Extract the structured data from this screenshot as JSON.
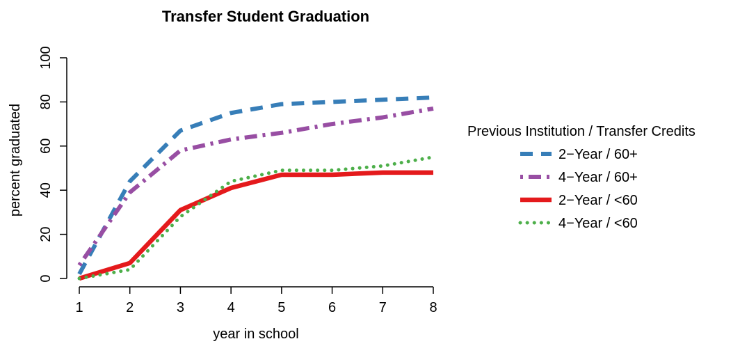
{
  "chart_data": {
    "type": "line",
    "title": "Transfer Student Graduation",
    "xlabel": "year in school",
    "ylabel": "percent graduated",
    "xlim": [
      1,
      8
    ],
    "ylim": [
      0,
      100
    ],
    "x_ticks": [
      "1",
      "2",
      "3",
      "4",
      "5",
      "6",
      "7",
      "8"
    ],
    "y_ticks": [
      "0",
      "20",
      "40",
      "60",
      "80",
      "100"
    ],
    "x": [
      1,
      2,
      3,
      4,
      5,
      6,
      7,
      8
    ],
    "grid": false,
    "legend": {
      "title": "Previous Institution / Transfer Credits",
      "position": "right"
    },
    "series": [
      {
        "name": "2−Year / 60+",
        "color": "#377EB8",
        "style": "dashed",
        "values": [
          2,
          44,
          67,
          75,
          79,
          80,
          81,
          82
        ]
      },
      {
        "name": "4−Year / 60+",
        "color": "#984EA3",
        "style": "dashdot",
        "values": [
          6,
          39,
          58,
          63,
          66,
          70,
          73,
          77
        ]
      },
      {
        "name": "2−Year / <60",
        "color": "#E41A1C",
        "style": "solid",
        "values": [
          0,
          7,
          31,
          41,
          47,
          47,
          48,
          48
        ]
      },
      {
        "name": "4−Year / <60",
        "color": "#4DAF4A",
        "style": "dotted",
        "values": [
          0,
          4,
          28,
          44,
          49,
          49,
          51,
          55
        ]
      }
    ]
  }
}
